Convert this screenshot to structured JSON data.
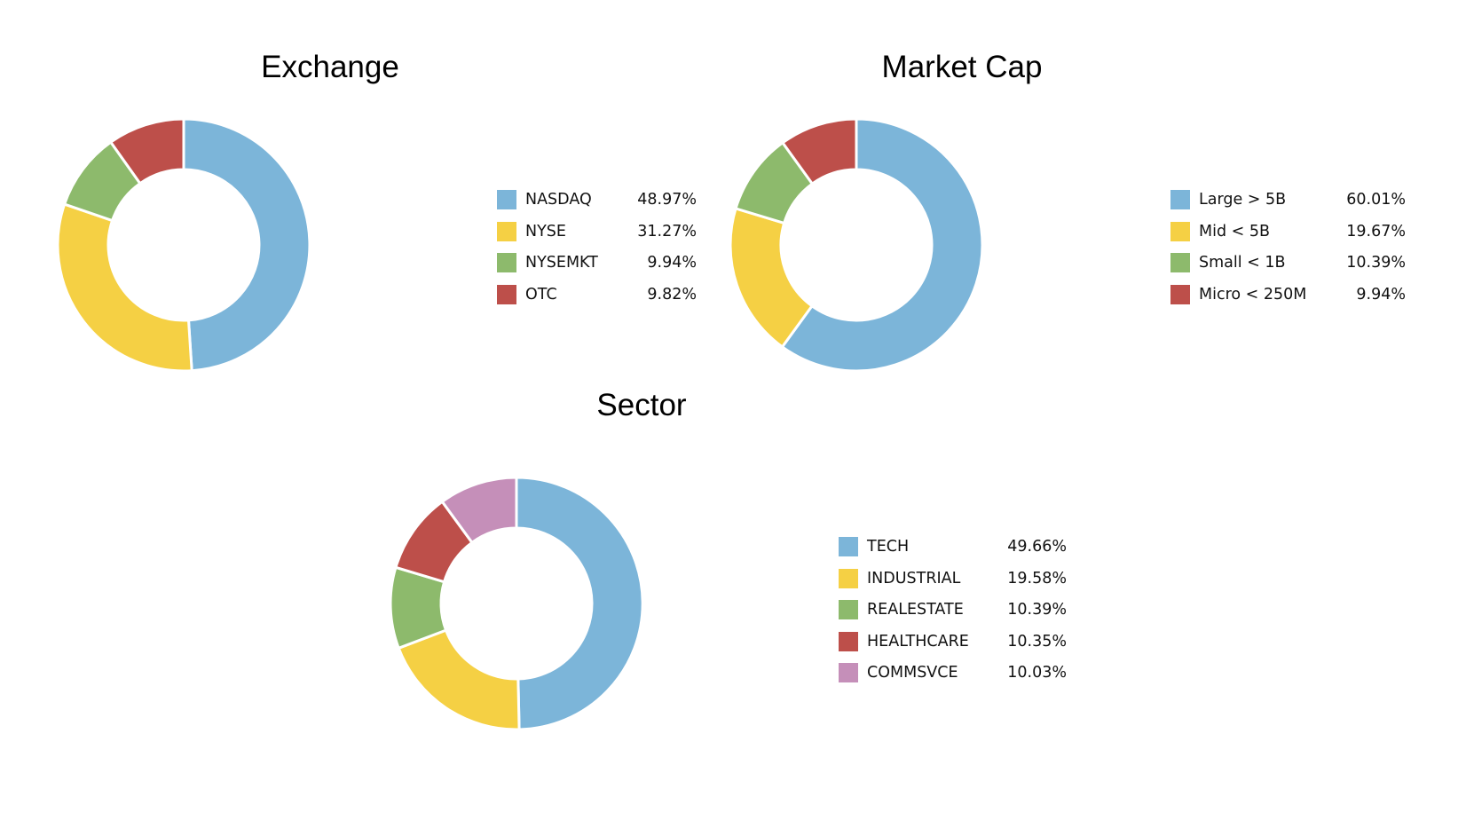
{
  "palette": {
    "blue": "#7cb5d9",
    "yellow": "#f5d044",
    "green": "#8dba6c",
    "red": "#bd4f4a",
    "pink": "#c58fb9",
    "background": "#ffffff",
    "text": "#111111"
  },
  "chart_data": [
    {
      "type": "pie",
      "donut": true,
      "title": "Exchange",
      "legend_position": "right",
      "start_angle_deg": 0,
      "direction": "clockwise",
      "categories": [
        "NASDAQ",
        "NYSE",
        "NYSEMKT",
        "OTC"
      ],
      "values": [
        48.97,
        31.27,
        9.94,
        9.82
      ],
      "value_labels": [
        "48.97%",
        "31.27%",
        "9.94%",
        "9.82%"
      ],
      "colors": [
        "#7cb5d9",
        "#f5d044",
        "#8dba6c",
        "#bd4f4a"
      ]
    },
    {
      "type": "pie",
      "donut": true,
      "title": "Market Cap",
      "legend_position": "right",
      "start_angle_deg": 0,
      "direction": "clockwise",
      "categories": [
        "Large > 5B",
        "Mid < 5B",
        "Small < 1B",
        "Micro < 250M"
      ],
      "values": [
        60.01,
        19.67,
        10.39,
        9.94
      ],
      "value_labels": [
        "60.01%",
        "19.67%",
        "10.39%",
        "9.94%"
      ],
      "colors": [
        "#7cb5d9",
        "#f5d044",
        "#8dba6c",
        "#bd4f4a"
      ]
    },
    {
      "type": "pie",
      "donut": true,
      "title": "Sector",
      "legend_position": "right",
      "start_angle_deg": 0,
      "direction": "clockwise",
      "categories": [
        "TECH",
        "INDUSTRIAL",
        "REALESTATE",
        "HEALTHCARE",
        "COMMSVCE"
      ],
      "values": [
        49.66,
        19.58,
        10.39,
        10.35,
        10.03
      ],
      "value_labels": [
        "49.66%",
        "19.58%",
        "10.39%",
        "10.35%",
        "10.03%"
      ],
      "colors": [
        "#7cb5d9",
        "#f5d044",
        "#8dba6c",
        "#bd4f4a",
        "#c58fb9"
      ]
    }
  ]
}
